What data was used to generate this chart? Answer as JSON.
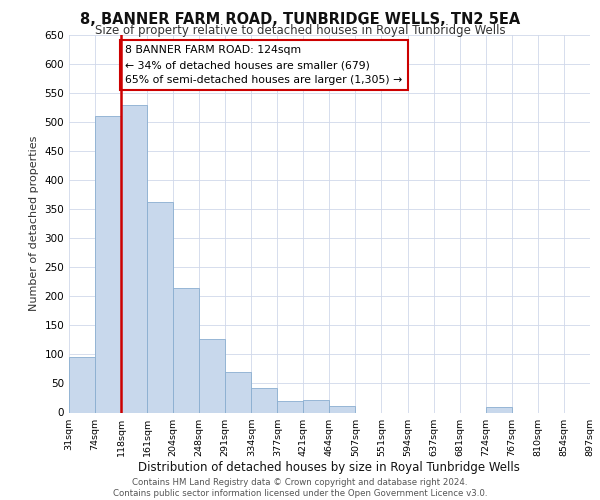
{
  "title": "8, BANNER FARM ROAD, TUNBRIDGE WELLS, TN2 5EA",
  "subtitle": "Size of property relative to detached houses in Royal Tunbridge Wells",
  "xlabel": "Distribution of detached houses by size in Royal Tunbridge Wells",
  "ylabel": "Number of detached properties",
  "annotation_line1": "8 BANNER FARM ROAD: 124sqm",
  "annotation_line2": "← 34% of detached houses are smaller (679)",
  "annotation_line3": "65% of semi-detached houses are larger (1,305) →",
  "bar_heights": [
    95,
    510,
    530,
    362,
    215,
    127,
    70,
    43,
    20,
    22,
    11,
    0,
    0,
    0,
    0,
    0,
    9,
    0,
    0,
    0
  ],
  "bar_color": "#c8d8ec",
  "bar_edge_color": "#8aaed0",
  "highlight_color": "#cc0000",
  "tick_labels": [
    "31sqm",
    "74sqm",
    "118sqm",
    "161sqm",
    "204sqm",
    "248sqm",
    "291sqm",
    "334sqm",
    "377sqm",
    "421sqm",
    "464sqm",
    "507sqm",
    "551sqm",
    "594sqm",
    "637sqm",
    "681sqm",
    "724sqm",
    "767sqm",
    "810sqm",
    "854sqm",
    "897sqm"
  ],
  "ylim": [
    0,
    650
  ],
  "yticks": [
    0,
    50,
    100,
    150,
    200,
    250,
    300,
    350,
    400,
    450,
    500,
    550,
    600,
    650
  ],
  "footer_line1": "Contains HM Land Registry data © Crown copyright and database right 2024.",
  "footer_line2": "Contains public sector information licensed under the Open Government Licence v3.0.",
  "background_color": "#ffffff",
  "grid_color": "#d0d8ea"
}
